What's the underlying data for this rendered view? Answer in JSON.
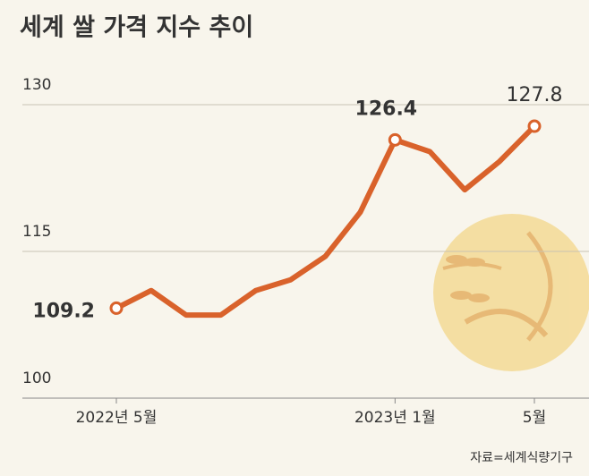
{
  "chart_data": {
    "type": "line",
    "title": "세계 쌀 가격 지수 추이",
    "source": "자료=세계식량기구",
    "categories": [
      "2022년 5월",
      null,
      null,
      null,
      null,
      null,
      null,
      null,
      "2023년 1월",
      null,
      null,
      null,
      "5월"
    ],
    "values": [
      109.2,
      111.0,
      108.5,
      108.5,
      111.0,
      112.1,
      114.5,
      119.0,
      126.4,
      125.2,
      121.3,
      124.2,
      127.8
    ],
    "value_labels": [
      "109.2",
      null,
      null,
      null,
      null,
      null,
      null,
      null,
      "126.4",
      null,
      null,
      null,
      "127.8"
    ],
    "color": "#d9622b",
    "last_label_color": "#c0473a",
    "ylim": [
      100,
      130
    ],
    "yticks": [
      100,
      115,
      130
    ],
    "grid": true
  }
}
